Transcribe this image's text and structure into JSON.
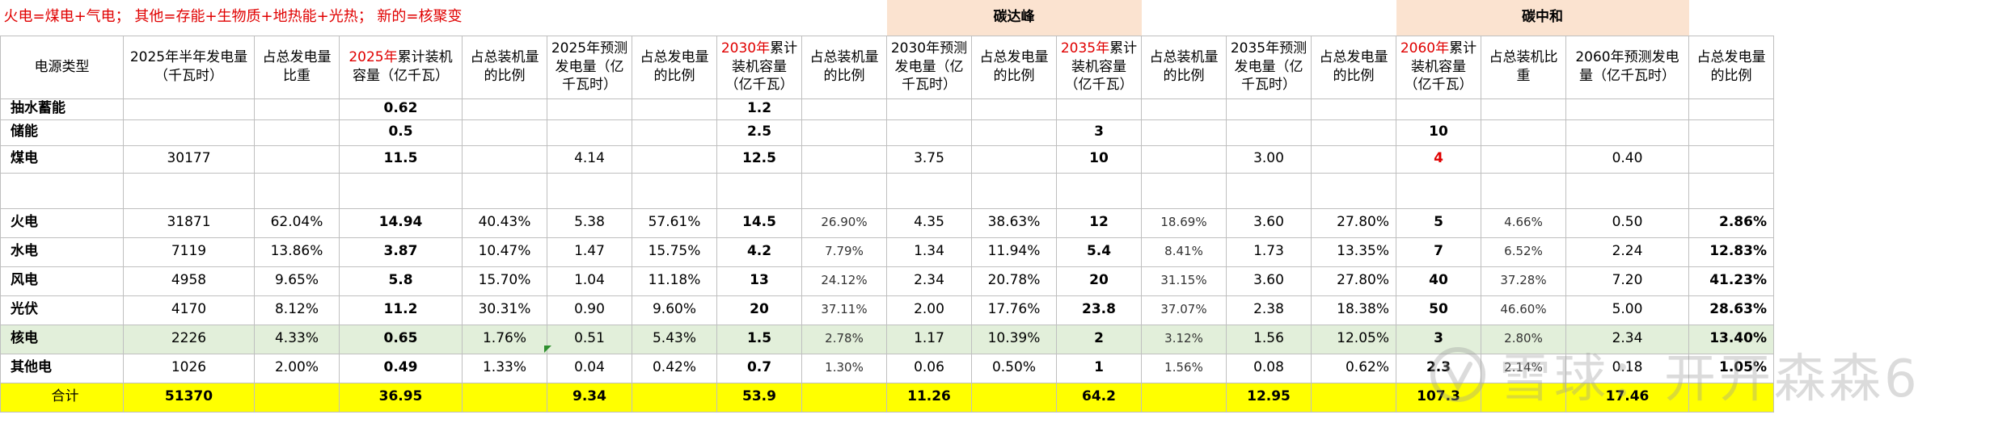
{
  "note": "火电=煤电+气电； 其他=存能+生物质+地热能+光热；  新的=核聚变",
  "milestones": {
    "peak": "碳达峰",
    "neutral": "碳中和"
  },
  "header": {
    "category": "电源类型",
    "c1": "2025年半年发电量（千瓦时）",
    "c2": "占总发电量比重",
    "c3_year": "2025年",
    "c3_text": "累计装机容量（亿千瓦）",
    "c4": "占总装机量的比例",
    "c5": "2025年预测发电量（亿千瓦时）",
    "c6": "占总发电量的比例",
    "c7_year": "2030年",
    "c7_text": "累计装机容量（亿千瓦）",
    "c8": "占总装机量的比例",
    "c9": "2030年预测发电量（亿千瓦时）",
    "c10": "占总发电量的比例",
    "c11_year": "2035年",
    "c11_text": "累计装机容量（亿千瓦）",
    "c12": "占总装机量的比例",
    "c13": "2035年预测发电量（亿千瓦时）",
    "c14": "占总发电量的比例",
    "c15_year": "2060年",
    "c15_text": "累计装机容量（亿千瓦）",
    "c16": "占总装机比重",
    "c17": "2060年预测发电量（亿千瓦时）",
    "c18": "占总发电量的比例"
  },
  "rows": [
    {
      "name": "抽水蓄能",
      "cells": [
        "",
        "",
        "0.62",
        "",
        "",
        "",
        "1.2",
        "",
        "",
        "",
        "",
        "",
        "",
        "",
        "",
        "",
        "",
        ""
      ]
    },
    {
      "name": "储能",
      "cells": [
        "",
        "",
        "0.5",
        "",
        "",
        "",
        "2.5",
        "",
        "",
        "",
        "3",
        "",
        "",
        "",
        "10",
        "",
        "",
        ""
      ]
    },
    {
      "name": "煤电",
      "cells": [
        "30177",
        "",
        "11.5",
        "",
        "4.14",
        "",
        "12.5",
        "",
        "3.75",
        "",
        "10",
        "",
        "3.00",
        "",
        "4",
        "",
        "0.40",
        ""
      ]
    },
    {
      "name": "",
      "cells": [
        "",
        "",
        "",
        "",
        "",
        "",
        "",
        "",
        "",
        "",
        "",
        "",
        "",
        "",
        "",
        "",
        "",
        ""
      ]
    },
    {
      "name": "火电",
      "cells": [
        "31871",
        "62.04%",
        "14.94",
        "40.43%",
        "5.38",
        "57.61%",
        "14.5",
        "26.90%",
        "4.35",
        "38.63%",
        "12",
        "18.69%",
        "3.60",
        "27.80%",
        "5",
        "4.66%",
        "0.50",
        "2.86%"
      ]
    },
    {
      "name": "水电",
      "cells": [
        "7119",
        "13.86%",
        "3.87",
        "10.47%",
        "1.47",
        "15.75%",
        "4.2",
        "7.79%",
        "1.34",
        "11.94%",
        "5.4",
        "8.41%",
        "1.73",
        "13.35%",
        "7",
        "6.52%",
        "2.24",
        "12.83%"
      ]
    },
    {
      "name": "风电",
      "cells": [
        "4958",
        "9.65%",
        "5.8",
        "15.70%",
        "1.04",
        "11.18%",
        "13",
        "24.12%",
        "2.34",
        "20.78%",
        "20",
        "31.15%",
        "3.60",
        "27.80%",
        "40",
        "37.28%",
        "7.20",
        "41.23%"
      ]
    },
    {
      "name": "光伏",
      "cells": [
        "4170",
        "8.12%",
        "11.2",
        "30.31%",
        "0.90",
        "9.60%",
        "20",
        "37.11%",
        "2.00",
        "17.76%",
        "23.8",
        "37.07%",
        "2.38",
        "18.38%",
        "50",
        "46.60%",
        "5.00",
        "28.63%"
      ]
    },
    {
      "name": "核电",
      "cells": [
        "2226",
        "4.33%",
        "0.65",
        "1.76%",
        "0.51",
        "5.43%",
        "1.5",
        "2.78%",
        "1.17",
        "10.39%",
        "2",
        "3.12%",
        "1.56",
        "12.05%",
        "3",
        "2.80%",
        "2.34",
        "13.40%"
      ]
    },
    {
      "name": "其他电",
      "cells": [
        "1026",
        "2.00%",
        "0.49",
        "1.33%",
        "0.04",
        "0.42%",
        "0.7",
        "1.30%",
        "0.06",
        "0.50%",
        "1",
        "1.56%",
        "0.08",
        "0.62%",
        "2.3",
        "2.14%",
        "0.18",
        "1.05%"
      ]
    }
  ],
  "total": {
    "name": "合计",
    "cells": [
      "51370",
      "",
      "36.95",
      "",
      "9.34",
      "",
      "53.9",
      "",
      "11.26",
      "",
      "64.2",
      "",
      "12.95",
      "",
      "107.3",
      "",
      "17.46",
      ""
    ]
  },
  "watermark": {
    "text": "雪球：开开森森6"
  }
}
